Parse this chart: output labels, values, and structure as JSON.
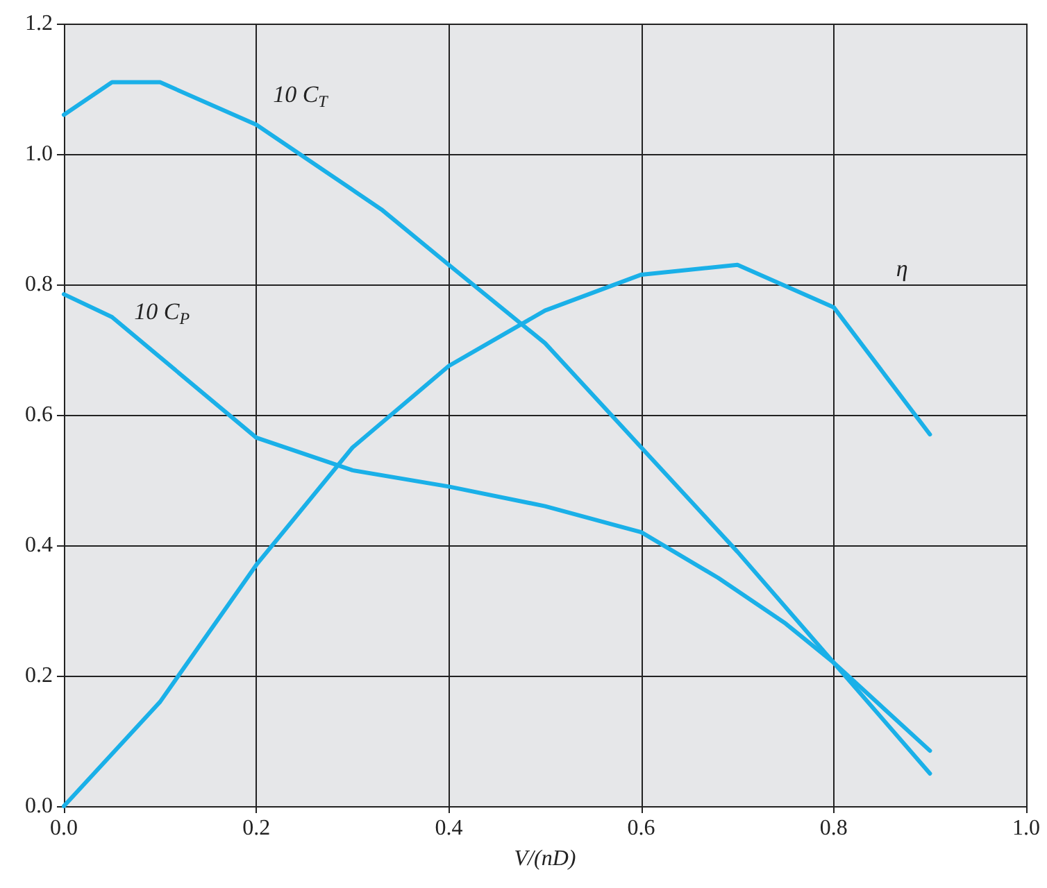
{
  "chart_data": {
    "type": "line",
    "xlabel": "V/(nD)",
    "xlim": [
      0,
      1
    ],
    "ylim": [
      0,
      1.2
    ],
    "xticks": [
      {
        "value": 0,
        "label": "0.0"
      },
      {
        "value": 0.2,
        "label": "0.2"
      },
      {
        "value": 0.4,
        "label": "0.4"
      },
      {
        "value": 0.6,
        "label": "0.6"
      },
      {
        "value": 0.8,
        "label": "0.8"
      },
      {
        "value": 1,
        "label": "1.0"
      }
    ],
    "yticks": [
      {
        "value": 0,
        "label": "0.0"
      },
      {
        "value": 0.2,
        "label": "0.2"
      },
      {
        "value": 0.4,
        "label": "0.4"
      },
      {
        "value": 0.6,
        "label": "0.6"
      },
      {
        "value": 0.8,
        "label": "0.8"
      },
      {
        "value": 1,
        "label": "1.0"
      },
      {
        "value": 1.2,
        "label": "1.2"
      }
    ],
    "grid": true,
    "marker": "none",
    "line_style": "solid",
    "series": [
      {
        "name": "10 C$_{T}$",
        "color": "#1ab0e8",
        "x": [
          0,
          0.05,
          0.1,
          0.2,
          0.33,
          0.4,
          0.5,
          0.6,
          0.7,
          0.8,
          0.9
        ],
        "values": [
          1.06,
          1.11,
          1.11,
          1.045,
          0.915,
          0.83,
          0.71,
          0.55,
          0.39,
          0.22,
          0.05
        ]
      },
      {
        "name": "10 C$_{P}$",
        "color": "#1ab0e8",
        "x": [
          0,
          0.05,
          0.2,
          0.3,
          0.4,
          0.5,
          0.6,
          0.68,
          0.75,
          0.8,
          0.9
        ],
        "values": [
          0.785,
          0.75,
          0.565,
          0.515,
          0.49,
          0.46,
          0.42,
          0.35,
          0.28,
          0.22,
          0.085
        ]
      },
      {
        "name": "η",
        "color": "#1ab0e8",
        "x": [
          0,
          0.1,
          0.2,
          0.3,
          0.4,
          0.5,
          0.6,
          0.7,
          0.8,
          0.9
        ],
        "values": [
          0,
          0.16,
          0.37,
          0.55,
          0.675,
          0.76,
          0.815,
          0.83,
          0.765,
          0.57
        ]
      }
    ]
  }
}
